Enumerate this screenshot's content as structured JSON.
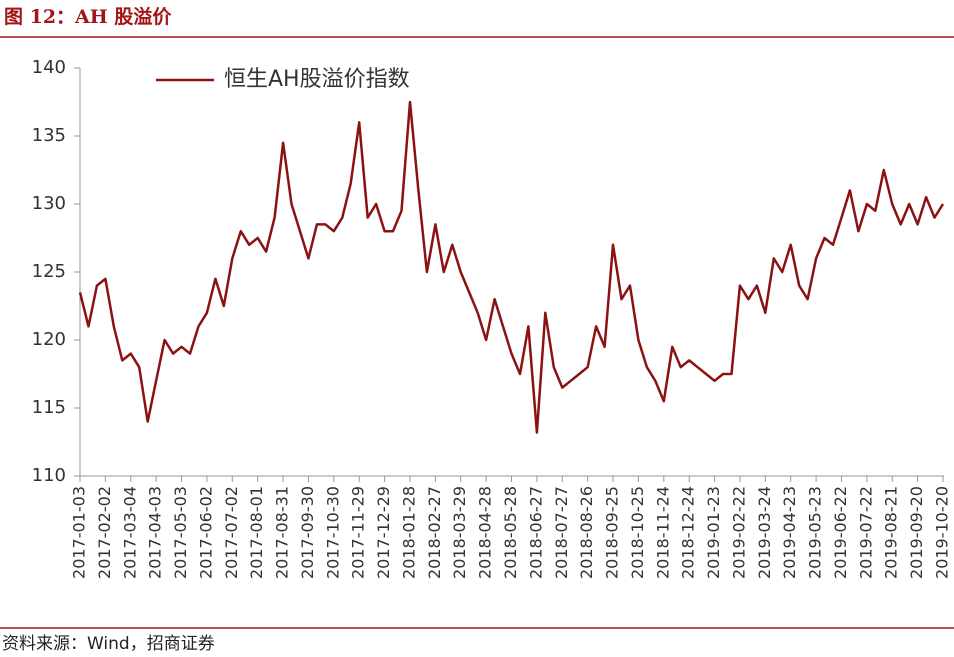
{
  "header": {
    "title": "图 12：AH 股溢价"
  },
  "chart_data": {
    "type": "line",
    "categories": [
      "2017-01-03",
      null,
      null,
      "2017-02-02",
      null,
      null,
      "2017-03-04",
      null,
      null,
      "2017-04-03",
      null,
      null,
      "2017-05-03",
      null,
      null,
      "2017-06-02",
      null,
      null,
      "2017-07-02",
      null,
      null,
      "2017-08-01",
      null,
      null,
      "2017-08-31",
      null,
      null,
      "2017-09-30",
      null,
      null,
      "2017-10-30",
      null,
      null,
      "2017-11-29",
      null,
      null,
      "2017-12-29",
      null,
      null,
      "2018-01-28",
      null,
      null,
      "2018-02-27",
      null,
      null,
      "2018-03-29",
      null,
      null,
      "2018-04-28",
      null,
      null,
      "2018-05-28",
      null,
      null,
      "2018-06-27",
      null,
      null,
      "2018-07-27",
      null,
      null,
      "2018-08-26",
      null,
      null,
      "2018-09-25",
      null,
      null,
      "2018-10-25",
      null,
      null,
      "2018-11-24",
      null,
      null,
      "2018-12-24",
      null,
      null,
      "2019-01-23",
      null,
      null,
      "2019-02-22",
      null,
      null,
      "2019-03-24",
      null,
      null,
      "2019-04-23",
      null,
      null,
      "2019-05-23",
      null,
      null,
      "2019-06-22",
      null,
      null,
      "2019-07-22",
      null,
      null,
      "2019-08-21",
      null,
      null,
      "2019-09-20",
      null,
      null,
      "2019-10-20"
    ],
    "series": [
      {
        "name": "恒生AH股溢价指数",
        "color": "#8b1212",
        "values": [
          123.5,
          121,
          124,
          124.5,
          121,
          118.5,
          119,
          118,
          114,
          117,
          120,
          119,
          119.5,
          119,
          121,
          122,
          124.5,
          122.5,
          126,
          128,
          127,
          127.5,
          126.5,
          129,
          134.5,
          130,
          128,
          126,
          128.5,
          128.5,
          128,
          129,
          131.5,
          136,
          129,
          130,
          128,
          128,
          129.5,
          137.5,
          131,
          125,
          128.5,
          125,
          127,
          125,
          123.5,
          122,
          120,
          123,
          121,
          119,
          117.5,
          121,
          113.2,
          122,
          118,
          116.5,
          117,
          117.5,
          118,
          121,
          119.5,
          127,
          123,
          124,
          120,
          118,
          117,
          115.5,
          119.5,
          118,
          118.5,
          118,
          117.5,
          117,
          117.5,
          117.5,
          124,
          123,
          124,
          122,
          126,
          125,
          127,
          124,
          123,
          126,
          127.5,
          127,
          129,
          131,
          128,
          130,
          129.5,
          132.5,
          130,
          128.5,
          130,
          128.5,
          130.5,
          129,
          130
        ]
      }
    ],
    "ylim": [
      110,
      140
    ],
    "yticks": [
      110,
      115,
      120,
      125,
      130,
      135,
      140
    ],
    "legend": "top-left"
  },
  "footer": {
    "source": "资料来源：Wind，招商证券"
  }
}
